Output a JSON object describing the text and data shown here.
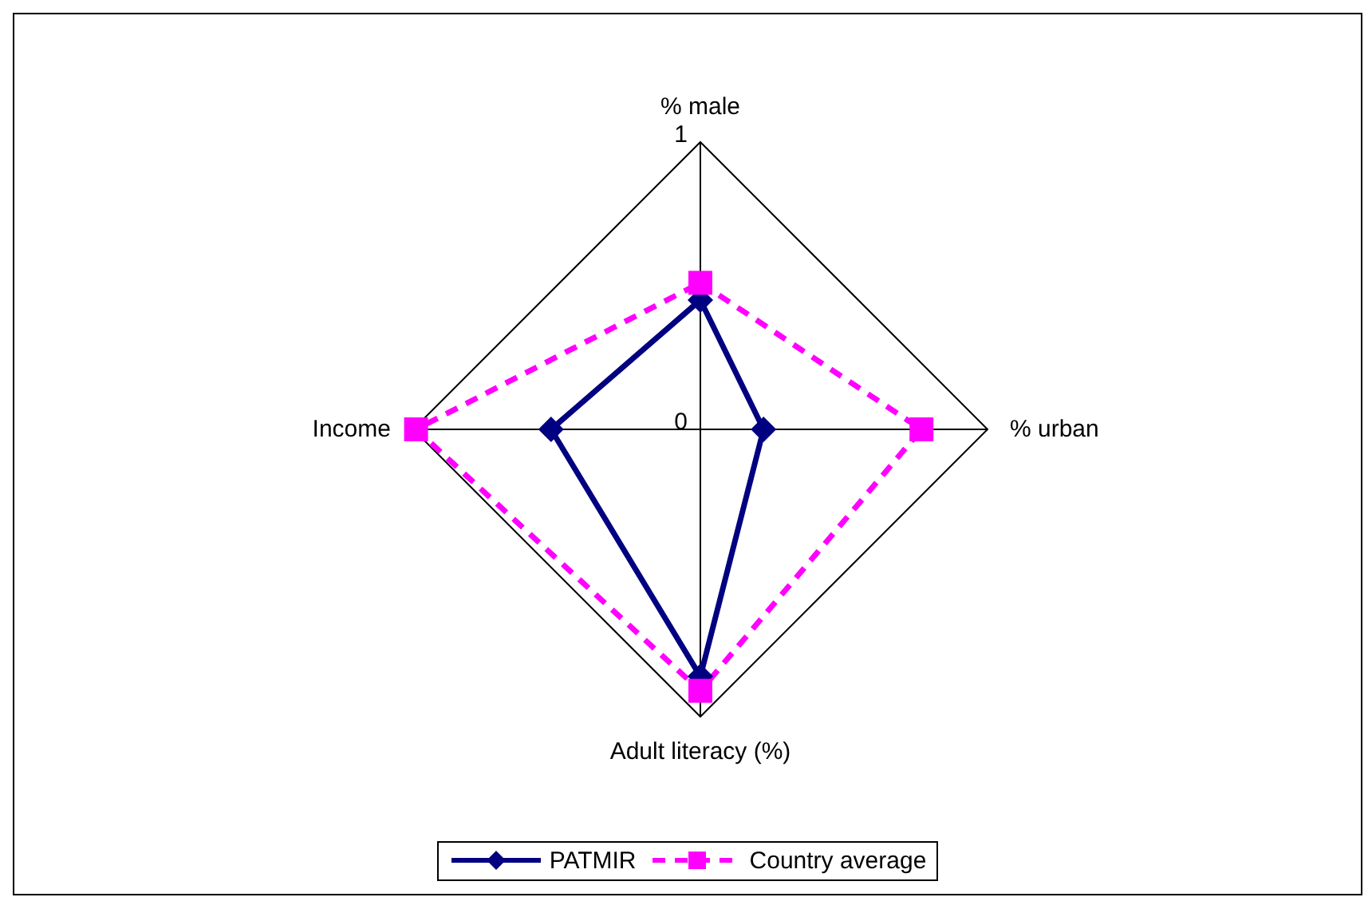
{
  "chart_data": {
    "type": "radar",
    "categories": [
      "% male",
      "% urban",
      "Adult literacy  (%)",
      "Income"
    ],
    "ylim": [
      0,
      1
    ],
    "yticks": [
      0,
      1
    ],
    "grid": true,
    "legend": "bottom",
    "series": [
      {
        "name": "PATMIR",
        "color": "#000080",
        "values": [
          0.45,
          0.22,
          0.86,
          0.52
        ],
        "marker": "diamond",
        "line_style": "solid"
      },
      {
        "name": "Country average",
        "color": "#ff00ff",
        "values": [
          0.51,
          0.77,
          0.91,
          0.99
        ],
        "marker": "square",
        "line_style": "dashed"
      }
    ]
  }
}
